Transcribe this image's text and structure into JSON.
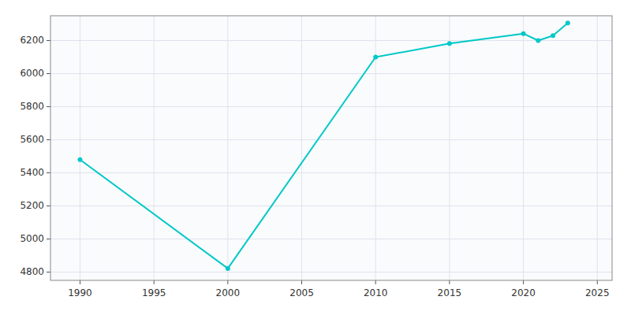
{
  "chart_data": {
    "type": "line",
    "x": [
      1990,
      2000,
      2010,
      2015,
      2020,
      2021,
      2022,
      2023
    ],
    "values": [
      5480,
      4822,
      6100,
      6182,
      6242,
      6200,
      6230,
      6306
    ],
    "color": "#00c8c8",
    "marker": "circle",
    "xlim": [
      1988,
      2026
    ],
    "ylim": [
      4750,
      6350
    ],
    "xticks": [
      1990,
      1995,
      2000,
      2005,
      2010,
      2015,
      2020,
      2025
    ],
    "yticks": [
      4800,
      5000,
      5200,
      5400,
      5600,
      5800,
      6000,
      6200
    ],
    "grid": true
  }
}
